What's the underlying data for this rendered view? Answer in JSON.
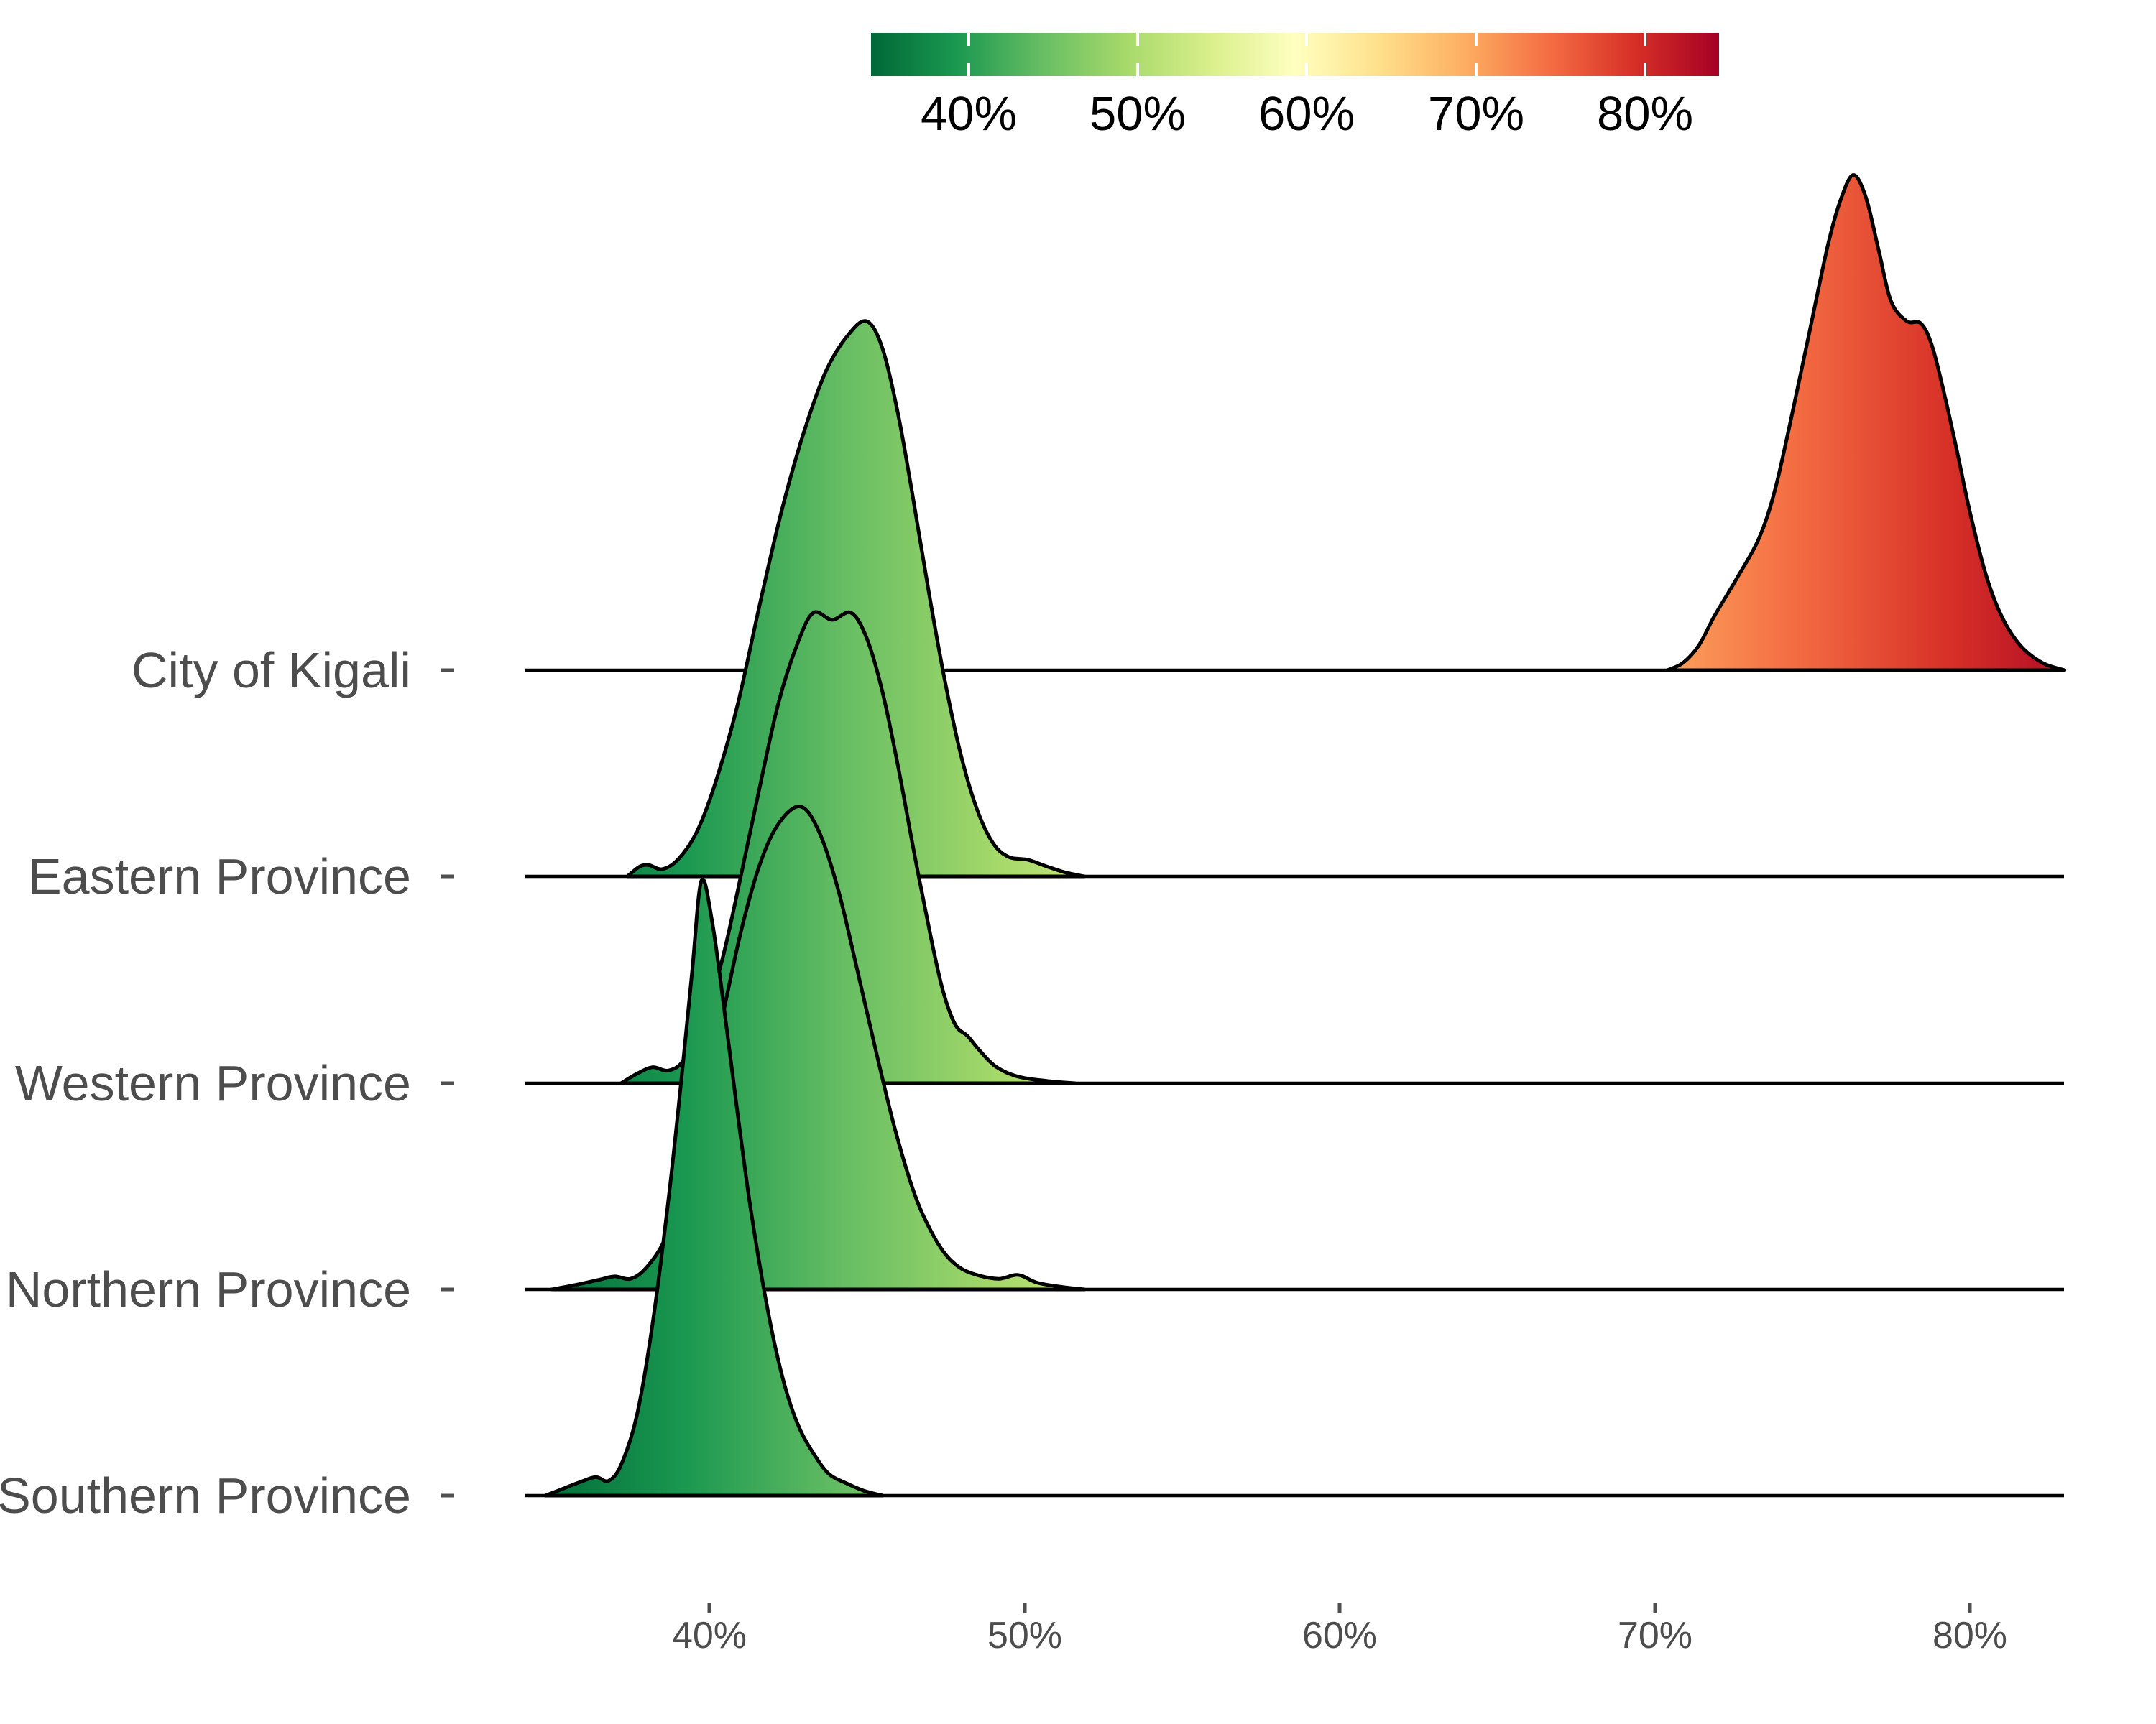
{
  "chart": {
    "background": "#ffffff",
    "ridge_outline_color": "#000000",
    "axis_text_color": "#4d4d4d",
    "baseline_color": "#000000"
  },
  "colorbar": {
    "tick_labels": [
      "40%",
      "50%",
      "60%",
      "70%",
      "80%"
    ],
    "tick_values": [
      40,
      50,
      60,
      70,
      80
    ],
    "value_range": [
      34.2,
      84.4
    ],
    "tick_mark_color": "#ffffff",
    "gradient_green_to_red": [
      "#006837",
      "#1a9850",
      "#66bd63",
      "#a6d96a",
      "#d9ef8b",
      "#ffffbf",
      "#fee08b",
      "#fdae61",
      "#f46d43",
      "#d73027",
      "#a50026"
    ]
  },
  "x_axis": {
    "tick_labels": [
      "40%",
      "50%",
      "60%",
      "70%",
      "80%"
    ],
    "tick_values": [
      40,
      50,
      60,
      70,
      80
    ]
  },
  "y_axis": {
    "labels": [
      "City of Kigali",
      "Eastern Province",
      "Western Province",
      "Northern Province",
      "Southern Province"
    ]
  },
  "chart_data": {
    "type": "area",
    "subtype": "ridgeline-density",
    "x_unit": "percent",
    "x_ticks": [
      40,
      50,
      60,
      70,
      80
    ],
    "x_domain_shown": [
      34.2,
      84.4
    ],
    "color_mapping": "x-value mapped to green-to-red gradient (same scale as colorbar)",
    "legend_position": "top-center",
    "grid": false,
    "rows": [
      {
        "label": "City of Kigali",
        "peak_x_pct": 76.3,
        "range_pct": [
          70.4,
          83.0
        ],
        "peak_height_rows": 2.4,
        "profile": [
          [
            70.4,
            0
          ],
          [
            70.9,
            0.015
          ],
          [
            71.4,
            0.05
          ],
          [
            71.9,
            0.11
          ],
          [
            72.6,
            0.185
          ],
          [
            73.3,
            0.265
          ],
          [
            73.8,
            0.36
          ],
          [
            74.3,
            0.5
          ],
          [
            74.9,
            0.68
          ],
          [
            75.5,
            0.86
          ],
          [
            75.9,
            0.95
          ],
          [
            76.3,
            1.0
          ],
          [
            76.7,
            0.955
          ],
          [
            77.1,
            0.85
          ],
          [
            77.5,
            0.745
          ],
          [
            78.0,
            0.705
          ],
          [
            78.45,
            0.7
          ],
          [
            78.8,
            0.655
          ],
          [
            79.2,
            0.555
          ],
          [
            79.6,
            0.44
          ],
          [
            80.0,
            0.32
          ],
          [
            80.5,
            0.195
          ],
          [
            81.0,
            0.11
          ],
          [
            81.6,
            0.05
          ],
          [
            82.3,
            0.015
          ],
          [
            83.0,
            0
          ]
        ]
      },
      {
        "label": "Eastern Province",
        "peak_x_pct": 45.0,
        "range_pct": [
          37.4,
          51.9
        ],
        "peak_height_rows": 2.69,
        "profile": [
          [
            37.4,
            0
          ],
          [
            37.8,
            0.018
          ],
          [
            38.1,
            0.02
          ],
          [
            38.5,
            0.013
          ],
          [
            39.0,
            0.03
          ],
          [
            39.6,
            0.08
          ],
          [
            40.2,
            0.17
          ],
          [
            40.9,
            0.31
          ],
          [
            41.6,
            0.49
          ],
          [
            42.3,
            0.66
          ],
          [
            43.0,
            0.8
          ],
          [
            43.7,
            0.91
          ],
          [
            44.4,
            0.975
          ],
          [
            45.0,
            1.0
          ],
          [
            45.5,
            0.95
          ],
          [
            46.0,
            0.83
          ],
          [
            46.5,
            0.67
          ],
          [
            47.0,
            0.5
          ],
          [
            47.5,
            0.345
          ],
          [
            48.0,
            0.215
          ],
          [
            48.5,
            0.12
          ],
          [
            49.0,
            0.06
          ],
          [
            49.5,
            0.035
          ],
          [
            50.1,
            0.03
          ],
          [
            50.7,
            0.018
          ],
          [
            51.3,
            0.007
          ],
          [
            51.9,
            0
          ]
        ]
      },
      {
        "label": "Western Province",
        "peak_x_pct": 43.9,
        "range_pct": [
          37.2,
          51.6
        ],
        "peak_height_rows": 2.28,
        "profile": [
          [
            37.2,
            0
          ],
          [
            37.7,
            0.02
          ],
          [
            38.2,
            0.034
          ],
          [
            38.7,
            0.027
          ],
          [
            39.2,
            0.05
          ],
          [
            39.8,
            0.13
          ],
          [
            40.4,
            0.26
          ],
          [
            41.0,
            0.44
          ],
          [
            41.6,
            0.63
          ],
          [
            42.2,
            0.81
          ],
          [
            42.8,
            0.935
          ],
          [
            43.3,
            1.0
          ],
          [
            43.9,
            0.985
          ],
          [
            44.5,
            1.0
          ],
          [
            45.0,
            0.945
          ],
          [
            45.5,
            0.83
          ],
          [
            46.0,
            0.67
          ],
          [
            46.5,
            0.49
          ],
          [
            47.0,
            0.32
          ],
          [
            47.4,
            0.2
          ],
          [
            47.8,
            0.125
          ],
          [
            48.2,
            0.1
          ],
          [
            48.6,
            0.068
          ],
          [
            49.1,
            0.035
          ],
          [
            49.8,
            0.014
          ],
          [
            50.7,
            0.005
          ],
          [
            51.6,
            0
          ]
        ]
      },
      {
        "label": "Northern Province",
        "peak_x_pct": 42.9,
        "range_pct": [
          35.0,
          51.9
        ],
        "peak_height_rows": 2.34,
        "profile": [
          [
            35.0,
            0
          ],
          [
            35.8,
            0.01
          ],
          [
            36.5,
            0.02
          ],
          [
            37.0,
            0.027
          ],
          [
            37.5,
            0.022
          ],
          [
            38.0,
            0.045
          ],
          [
            38.6,
            0.105
          ],
          [
            39.2,
            0.22
          ],
          [
            39.8,
            0.38
          ],
          [
            40.4,
            0.56
          ],
          [
            41.0,
            0.74
          ],
          [
            41.6,
            0.88
          ],
          [
            42.2,
            0.965
          ],
          [
            42.9,
            1.0
          ],
          [
            43.5,
            0.945
          ],
          [
            44.1,
            0.825
          ],
          [
            44.7,
            0.66
          ],
          [
            45.3,
            0.49
          ],
          [
            45.9,
            0.33
          ],
          [
            46.5,
            0.2
          ],
          [
            47.0,
            0.125
          ],
          [
            47.5,
            0.072
          ],
          [
            48.0,
            0.043
          ],
          [
            48.6,
            0.028
          ],
          [
            49.2,
            0.022
          ],
          [
            49.8,
            0.03
          ],
          [
            50.4,
            0.014
          ],
          [
            51.2,
            0.005
          ],
          [
            51.9,
            0
          ]
        ]
      },
      {
        "label": "Southern Province",
        "peak_x_pct": 39.75,
        "range_pct": [
          34.8,
          45.5
        ],
        "peak_height_rows": 2.98,
        "profile": [
          [
            34.8,
            0
          ],
          [
            35.3,
            0.01
          ],
          [
            35.9,
            0.022
          ],
          [
            36.4,
            0.03
          ],
          [
            36.8,
            0.024
          ],
          [
            37.2,
            0.05
          ],
          [
            37.7,
            0.13
          ],
          [
            38.2,
            0.28
          ],
          [
            38.7,
            0.48
          ],
          [
            39.1,
            0.67
          ],
          [
            39.45,
            0.85
          ],
          [
            39.75,
            1.0
          ],
          [
            40.1,
            0.93
          ],
          [
            40.5,
            0.78
          ],
          [
            40.9,
            0.62
          ],
          [
            41.3,
            0.47
          ],
          [
            41.7,
            0.345
          ],
          [
            42.1,
            0.24
          ],
          [
            42.5,
            0.16
          ],
          [
            42.9,
            0.105
          ],
          [
            43.35,
            0.065
          ],
          [
            43.8,
            0.035
          ],
          [
            44.35,
            0.02
          ],
          [
            44.9,
            0.008
          ],
          [
            45.5,
            0
          ]
        ]
      }
    ]
  }
}
